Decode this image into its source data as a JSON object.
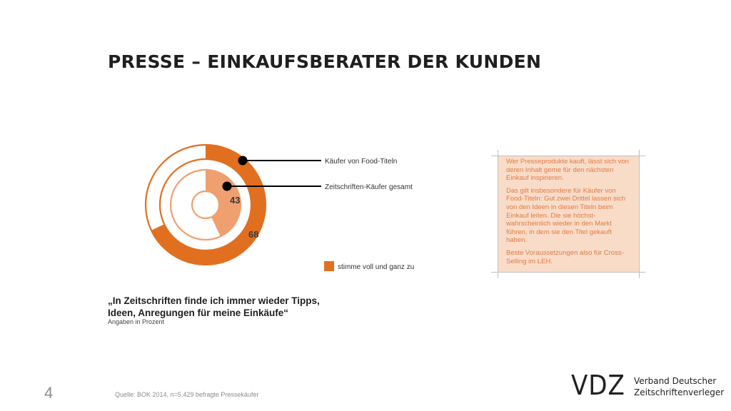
{
  "slide": {
    "title": "PRESSE – EINKAUFSBERATER DER KUNDEN",
    "quote": "„In Zeitschriften finde ich immer wieder Tipps, Ideen, Anregungen für meine Einkäufe“",
    "quote_note": "Angaben in Prozent",
    "page_number": "4",
    "source": "Quelle: BOK 2014, n=5.429 befragte Pressekäufer"
  },
  "info_box": {
    "paragraphs": [
      "Wer Presseprodukte kauft, lässt sich von deren Inhalt gerne für den nächsten Einkauf inspirieren.",
      "Das gilt insbesondere für Käufer von Food-Titeln: Gut zwei Drittel lassen sich von den Ideen in diesen Titeln beim Einkauf leiten. Die sie höchst-wahrscheinlich wieder in den Markt führen, in dem sie den Titel gekauft haben.",
      "Beste Voraussetzungen also für Cross-Selling im LEH."
    ]
  },
  "logo": {
    "mark": "VDZ",
    "line1": "Verband Deutscher",
    "line2": "Zeitschriftenverleger"
  },
  "colors": {
    "accent": "#e07020",
    "accent_light": "#f0a070",
    "info_box_bg": "#f9dcc8",
    "info_box_text": "#e07b45"
  },
  "chart_data": {
    "type": "pie",
    "variant": "nested-donut",
    "max": 100,
    "series": [
      {
        "name": "Käufer von Food-Titeln",
        "value": 68,
        "label": "68",
        "ring": "outer",
        "color": "#e07020"
      },
      {
        "name": "Zeitschriften-Käufer gesamt",
        "value": 43,
        "label": "43",
        "ring": "inner",
        "color": "#f0a070"
      }
    ],
    "legend": [
      {
        "label": "stimme voll und ganz zu",
        "color": "#e07020"
      }
    ],
    "legend_placement": "bottom-right"
  }
}
